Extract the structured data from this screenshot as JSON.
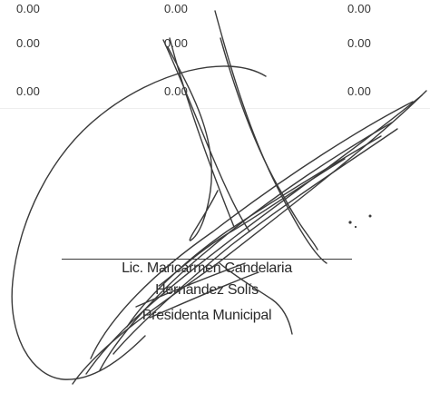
{
  "amounts": {
    "row1": [
      "0.00",
      "0.00",
      "0.00"
    ],
    "row2": [
      "0.00",
      "0.00",
      "0.00"
    ],
    "row3": [
      "0.00",
      "0.00",
      "0.00"
    ]
  },
  "signatory": {
    "name_line1": "Lic. Maricarmen Candelaria",
    "name_line2": "Hernández Solís",
    "title": "Presidenta Municipal"
  },
  "colors": {
    "text": "#2a2a2a",
    "ink": "#3a3a3a"
  }
}
